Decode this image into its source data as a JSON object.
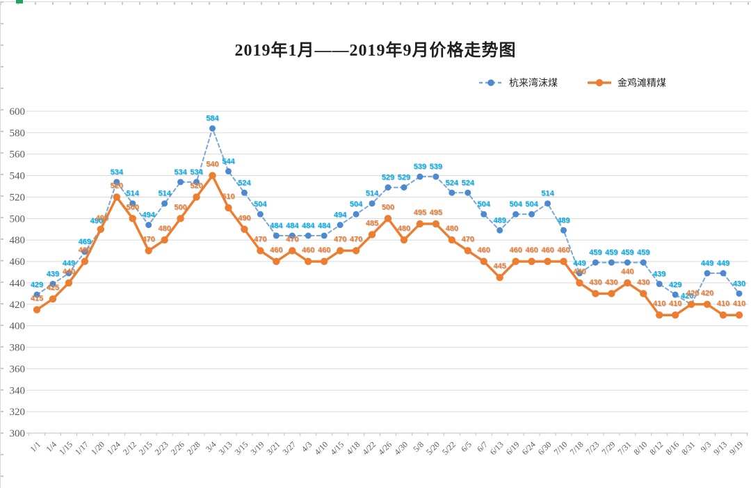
{
  "sheet": {
    "selection_handle_color": "#21A366"
  },
  "chart": {
    "title": "2019年1月——2019年9月价格走势图"
  },
  "chart_data": {
    "type": "line",
    "title": "2019年1月——2019年9月价格走势图",
    "categories": [
      "1/1",
      "1/4",
      "1/15",
      "1/17",
      "1/20",
      "1/24",
      "2/12",
      "2/15",
      "2/23",
      "2/26",
      "2/28",
      "3/4",
      "3/13",
      "3/15",
      "3/19",
      "3/21",
      "3/27",
      "4/3",
      "4/10",
      "4/15",
      "4/18",
      "4/22",
      "4/26",
      "4/30",
      "5/8",
      "5/20",
      "5/22",
      "6/5",
      "6/7",
      "6/13",
      "6/19",
      "6/24",
      "6/30",
      "7/10",
      "7/18",
      "7/23",
      "7/29",
      "7/31",
      "8/10",
      "8/12",
      "8/16",
      "8/31",
      "9/3",
      "9/13",
      "9/19"
    ],
    "series": [
      {
        "name": "杭来湾沫煤",
        "color": "#4D89CE",
        "line_color": "#74A7DB",
        "label_color": "#00B0F0",
        "dashed": true,
        "values": [
          429,
          439,
          449,
          469,
          490,
          534,
          514,
          494,
          514,
          534,
          534,
          584,
          544,
          524,
          504,
          484,
          484,
          484,
          484,
          494,
          504,
          514,
          529,
          529,
          539,
          539,
          524,
          524,
          504,
          489,
          504,
          504,
          514,
          489,
          449,
          459,
          459,
          459,
          459,
          439,
          429,
          420,
          449,
          449,
          430
        ]
      },
      {
        "name": "金鸡滩精煤",
        "color": "#ED7D31",
        "line_color": "#ED7D31",
        "label_color": "#ED7D31",
        "dashed": false,
        "values": [
          415,
          425,
          440,
          460,
          490,
          520,
          500,
          470,
          480,
          500,
          520,
          540,
          510,
          490,
          470,
          460,
          470,
          460,
          460,
          470,
          470,
          485,
          500,
          480,
          495,
          495,
          480,
          470,
          460,
          445,
          460,
          460,
          460,
          460,
          440,
          430,
          430,
          440,
          430,
          410,
          410,
          420,
          420,
          410,
          410
        ]
      }
    ],
    "ylim": [
      300,
      600
    ],
    "ytick_step": 20,
    "yticks": [
      300,
      320,
      340,
      360,
      380,
      400,
      420,
      440,
      460,
      480,
      500,
      520,
      540,
      560,
      580,
      600
    ],
    "grid": true,
    "legend_position": "top-right",
    "data_labels": true,
    "xlabel": "",
    "ylabel": ""
  }
}
